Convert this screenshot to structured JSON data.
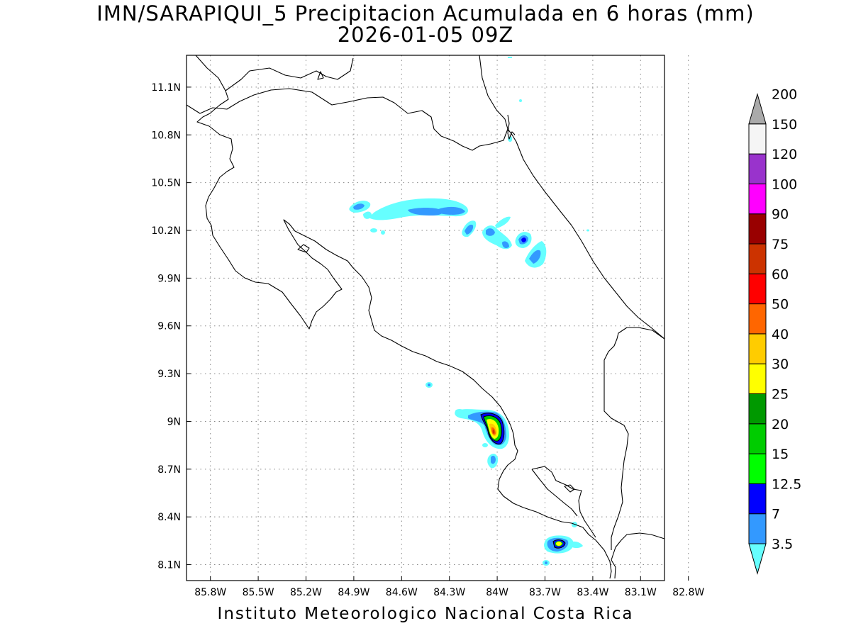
{
  "title": "IMN/SARAPIQUI_5 Precipitacion Acumulada en 6 horas (mm)",
  "subtitle": "2026-01-05 09Z",
  "credit": "Instituto Meteorologico Nacional Costa Rica",
  "map": {
    "lon_range": [
      -85.95,
      -82.95
    ],
    "lat_range": [
      8.0,
      11.3
    ],
    "grid": "dotted",
    "lon_ticks": [
      "85.8W",
      "85.5W",
      "85.2W",
      "84.9W",
      "84.6W",
      "84.3W",
      "84W",
      "83.7W",
      "83.4W",
      "83.1W",
      "82.8W"
    ],
    "lat_ticks": [
      "11.1N",
      "10.8N",
      "10.5N",
      "10.2N",
      "9.9N",
      "9.6N",
      "9.3N",
      "9N",
      "8.7N",
      "8.4N",
      "8.1N"
    ],
    "lon_values": [
      -85.8,
      -85.5,
      -85.2,
      -84.9,
      -84.6,
      -84.3,
      -84.0,
      -83.7,
      -83.4,
      -83.1,
      -82.8
    ],
    "lat_values": [
      11.1,
      10.8,
      10.5,
      10.2,
      9.9,
      9.6,
      9.3,
      9.0,
      8.7,
      8.4,
      8.1
    ]
  },
  "colorbar": {
    "labels": [
      "3.5",
      "7",
      "12.5",
      "15",
      "20",
      "25",
      "30",
      "40",
      "50",
      "60",
      "75",
      "90",
      "100",
      "120",
      "150",
      "200"
    ],
    "colors": [
      "#66ffff",
      "#3399ff",
      "#0000ff",
      "#00ff00",
      "#00cc00",
      "#009900",
      "#ffff00",
      "#ffcc00",
      "#ff6600",
      "#ff0000",
      "#cc3300",
      "#990000",
      "#ff00ff",
      "#9933cc",
      "#f5f5f5",
      "#aaaaaa"
    ]
  }
}
